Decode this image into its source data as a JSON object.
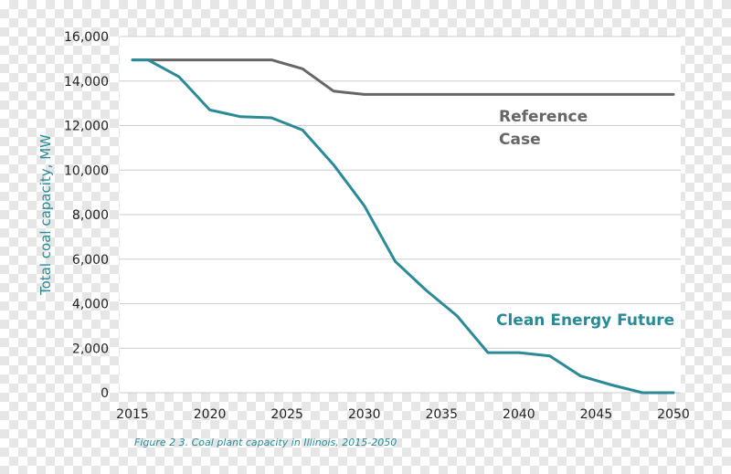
{
  "chart_data": {
    "type": "line",
    "title": "",
    "caption": "Figure 2 3. Coal plant capacity in Illinois, 2015-2050",
    "xlabel": "",
    "ylabel": "Total coal capacity, MW",
    "xlim": [
      2015,
      2050
    ],
    "ylim": [
      0,
      16000
    ],
    "x_ticks": [
      2015,
      2020,
      2025,
      2030,
      2035,
      2040,
      2045,
      2050
    ],
    "x_tick_labels": [
      "2015",
      "2020",
      "2025",
      "2030",
      "2035",
      "2040",
      "2045",
      "2050"
    ],
    "y_ticks": [
      0,
      2000,
      4000,
      6000,
      8000,
      10000,
      12000,
      14000,
      16000
    ],
    "y_tick_labels": [
      "0",
      "2,000",
      "4,000",
      "6,000",
      "8,000",
      "10,000",
      "12,000",
      "14,000",
      "16,000"
    ],
    "grid": "horizontal",
    "series": [
      {
        "name": "Reference Case",
        "label_lines": [
          "Reference",
          "Case"
        ],
        "color": "#666666",
        "x": [
          2015,
          2016,
          2018,
          2020,
          2022,
          2024,
          2026,
          2028,
          2030,
          2032,
          2034,
          2036,
          2038,
          2040,
          2042,
          2044,
          2046,
          2048,
          2050
        ],
        "y": [
          14950,
          14950,
          14950,
          14950,
          14950,
          14950,
          14550,
          13550,
          13400,
          13400,
          13400,
          13400,
          13400,
          13400,
          13400,
          13400,
          13400,
          13400,
          13400
        ]
      },
      {
        "name": "Clean Energy Future",
        "label_lines": [
          "Clean Energy Future"
        ],
        "color": "#2a8a96",
        "x": [
          2015,
          2016,
          2018,
          2020,
          2022,
          2024,
          2026,
          2028,
          2030,
          2032,
          2034,
          2036,
          2038,
          2040,
          2042,
          2044,
          2046,
          2048,
          2050
        ],
        "y": [
          14950,
          14950,
          14200,
          12700,
          12400,
          12350,
          11800,
          10250,
          8400,
          5900,
          4600,
          3450,
          1800,
          1800,
          1650,
          750,
          350,
          0,
          0
        ]
      }
    ]
  },
  "colors": {
    "axis_text": "#222222",
    "ylabel": "#2a8a96",
    "caption": "#2a8a96",
    "grid": "#cccccc",
    "plot_bg": "#ffffff"
  }
}
